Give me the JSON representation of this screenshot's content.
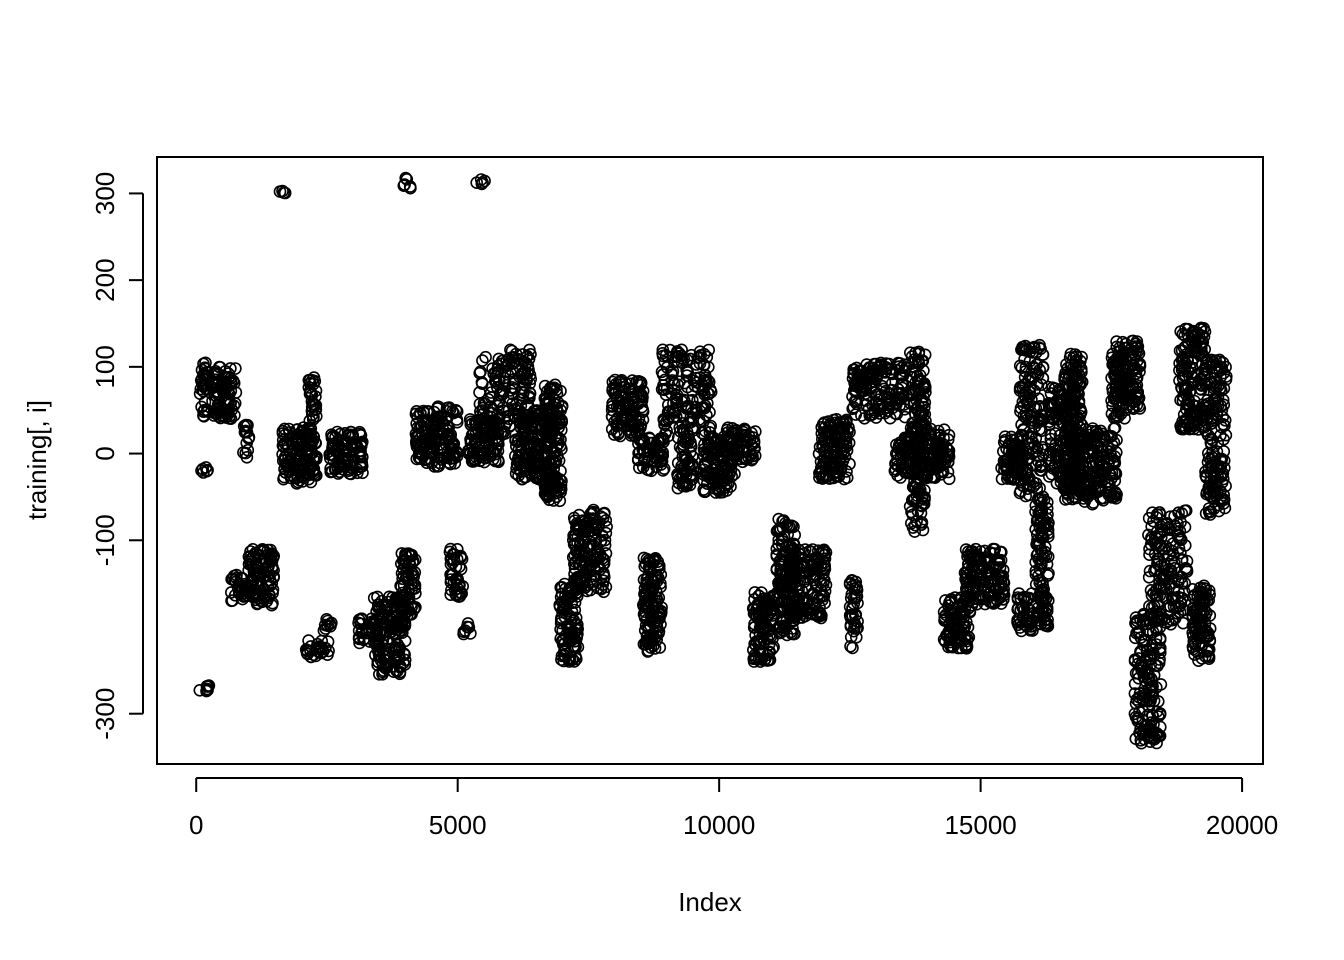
{
  "chart_data": {
    "type": "scatter",
    "xlabel": "Index",
    "ylabel": "training[, i]",
    "xlim": [
      -750,
      20400
    ],
    "ylim": [
      -358,
      342
    ],
    "x_ticks": [
      0,
      5000,
      10000,
      15000,
      20000
    ],
    "x_tick_labels": [
      "0",
      "5000",
      "10000",
      "15000",
      "20000"
    ],
    "y_ticks": [
      -300,
      -100,
      0,
      100,
      200,
      300
    ],
    "y_tick_labels": [
      "-300",
      "-100",
      "0",
      "100",
      "200",
      "300"
    ],
    "marker": "open-circle",
    "grid": false,
    "legend": "none",
    "point_color": "#000000",
    "series": [
      {
        "clusters": [
          {
            "x": [
              20,
              300
            ],
            "y": [
              -274,
              -266
            ]
          },
          {
            "x": [
              70,
              230
            ],
            "y": [
              40,
              105
            ]
          },
          {
            "x": [
              100,
              230
            ],
            "y": [
              -25,
              -10
            ]
          },
          {
            "x": [
              300,
              760
            ],
            "y": [
              40,
              100
            ]
          },
          {
            "x": [
              660,
              1000
            ],
            "y": [
              -170,
              -140
            ]
          },
          {
            "x": [
              900,
              1010
            ],
            "y": [
              -5,
              35
            ]
          },
          {
            "x": [
              1000,
              1500
            ],
            "y": [
              -175,
              -110
            ]
          },
          {
            "x": [
              1600,
              1750
            ],
            "y": [
              300,
              303
            ]
          },
          {
            "x": [
              1650,
              2200
            ],
            "y": [
              -35,
              30
            ]
          },
          {
            "x": [
              2150,
              2300
            ],
            "y": [
              -30,
              90
            ]
          },
          {
            "x": [
              2100,
              2550
            ],
            "y": [
              -235,
              -215
            ]
          },
          {
            "x": [
              2400,
              2600
            ],
            "y": [
              -205,
              -190
            ]
          },
          {
            "x": [
              2550,
              3200
            ],
            "y": [
              -25,
              25
            ]
          },
          {
            "x": [
              3100,
              3500
            ],
            "y": [
              -220,
              -190
            ]
          },
          {
            "x": [
              3400,
              4000
            ],
            "y": [
              -255,
              -165
            ]
          },
          {
            "x": [
              3960,
              4100
            ],
            "y": [
              305,
              318
            ]
          },
          {
            "x": [
              3900,
              4200
            ],
            "y": [
              -190,
              -115
            ]
          },
          {
            "x": [
              4200,
              5000
            ],
            "y": [
              -15,
              55
            ]
          },
          {
            "x": [
              4850,
              5100
            ],
            "y": [
              -165,
              -110
            ]
          },
          {
            "x": [
              5100,
              5250
            ],
            "y": [
              -210,
              -195
            ]
          },
          {
            "x": [
              5200,
              5800
            ],
            "y": [
              -10,
              40
            ]
          },
          {
            "x": [
              5350,
              5550
            ],
            "y": [
              310,
              318
            ]
          },
          {
            "x": [
              5400,
              6400
            ],
            "y": [
              20,
              120
            ]
          },
          {
            "x": [
              6100,
              6800
            ],
            "y": [
              -30,
              50
            ]
          },
          {
            "x": [
              6650,
              7000
            ],
            "y": [
              -55,
              80
            ]
          },
          {
            "x": [
              6950,
              7300
            ],
            "y": [
              -240,
              -150
            ]
          },
          {
            "x": [
              7200,
              7850
            ],
            "y": [
              -160,
              -65
            ]
          },
          {
            "x": [
              7950,
              8550
            ],
            "y": [
              20,
              85
            ]
          },
          {
            "x": [
              8450,
              8950
            ],
            "y": [
              -20,
              20
            ]
          },
          {
            "x": [
              8550,
              8900
            ],
            "y": [
              -230,
              -120
            ]
          },
          {
            "x": [
              8900,
              9850
            ],
            "y": [
              20,
              120
            ]
          },
          {
            "x": [
              9200,
              9500
            ],
            "y": [
              -40,
              20
            ]
          },
          {
            "x": [
              9700,
              10300
            ],
            "y": [
              -45,
              20
            ]
          },
          {
            "x": [
              10150,
              10700
            ],
            "y": [
              -10,
              30
            ]
          },
          {
            "x": [
              10650,
              11050
            ],
            "y": [
              -240,
              -160
            ]
          },
          {
            "x": [
              11100,
              11450
            ],
            "y": [
              -210,
              -75
            ]
          },
          {
            "x": [
              11350,
              12050
            ],
            "y": [
              -190,
              -110
            ]
          },
          {
            "x": [
              11900,
              12500
            ],
            "y": [
              -30,
              40
            ]
          },
          {
            "x": [
              12500,
              12650
            ],
            "y": [
              -225,
              -140
            ]
          },
          {
            "x": [
              12550,
              13600
            ],
            "y": [
              40,
              105
            ]
          },
          {
            "x": [
              13350,
              13900
            ],
            "y": [
              -30,
              20
            ]
          },
          {
            "x": [
              13650,
              13950
            ],
            "y": [
              -90,
              120
            ]
          },
          {
            "x": [
              13950,
              14400
            ],
            "y": [
              -30,
              30
            ]
          },
          {
            "x": [
              14300,
              14800
            ],
            "y": [
              -225,
              -165
            ]
          },
          {
            "x": [
              14700,
              15450
            ],
            "y": [
              -175,
              -110
            ]
          },
          {
            "x": [
              15400,
              15800
            ],
            "y": [
              -30,
              20
            ]
          },
          {
            "x": [
              15700,
              16000
            ],
            "y": [
              -205,
              -160
            ]
          },
          {
            "x": [
              15750,
              16200
            ],
            "y": [
              -50,
              125
            ]
          },
          {
            "x": [
              16050,
              16300
            ],
            "y": [
              -200,
              -50
            ]
          },
          {
            "x": [
              16300,
              16900
            ],
            "y": [
              -40,
              80
            ]
          },
          {
            "x": [
              16600,
              16950
            ],
            "y": [
              -55,
              115
            ]
          },
          {
            "x": [
              16950,
              17600
            ],
            "y": [
              -60,
              30
            ]
          },
          {
            "x": [
              17500,
              18050
            ],
            "y": [
              40,
              130
            ]
          },
          {
            "x": [
              17950,
              18450
            ],
            "y": [
              -335,
              -185
            ]
          },
          {
            "x": [
              18200,
              18950
            ],
            "y": [
              -200,
              -65
            ]
          },
          {
            "x": [
              18800,
              19300
            ],
            "y": [
              25,
              145
            ]
          },
          {
            "x": [
              19050,
              19400
            ],
            "y": [
              -240,
              -150
            ]
          },
          {
            "x": [
              19300,
              19700
            ],
            "y": [
              -75,
              110
            ]
          }
        ]
      }
    ]
  }
}
